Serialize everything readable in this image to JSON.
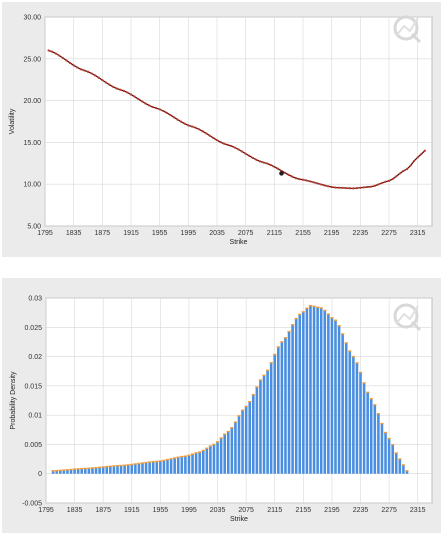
{
  "colors": {
    "panel_bg": "#ebebeb",
    "plot_bg": "#ffffff",
    "grid": "#d8d8d8",
    "line_dark": "#5a0f0f",
    "line_dots": "#c0392b",
    "highlight_point": "#222222",
    "bar_fill": "#4a8ee0",
    "bar_outline": "#f0a040"
  },
  "chart_data": [
    {
      "type": "line",
      "title": "",
      "xlabel": "Strike",
      "ylabel": "Volatility",
      "xlim": [
        1795,
        2335
      ],
      "ylim": [
        5,
        30
      ],
      "x_ticks": [
        "1795",
        "1835",
        "1875",
        "1915",
        "1955",
        "1995",
        "2035",
        "2075",
        "2115",
        "2155",
        "2195",
        "2235",
        "2275",
        "2315"
      ],
      "y_ticks": [
        "5.00",
        "10.00",
        "15.00",
        "20.00",
        "25.00",
        "30.00"
      ],
      "x_start": 1800,
      "x_end": 2325,
      "x_step": 5,
      "series": [
        {
          "points": [
            {
              "x": 1800,
              "y": 26.0
            },
            {
              "x": 1850,
              "y": 23.6
            },
            {
              "x": 1900,
              "y": 21.3
            },
            {
              "x": 1950,
              "y": 19.1
            },
            {
              "x": 2000,
              "y": 16.9
            },
            {
              "x": 2050,
              "y": 14.7
            },
            {
              "x": 2100,
              "y": 12.6
            },
            {
              "x": 2150,
              "y": 10.6
            },
            {
              "x": 2200,
              "y": 9.6
            },
            {
              "x": 2225,
              "y": 9.5
            },
            {
              "x": 2250,
              "y": 9.7
            },
            {
              "x": 2275,
              "y": 10.4
            },
            {
              "x": 2300,
              "y": 11.8
            },
            {
              "x": 2315,
              "y": 13.2
            },
            {
              "x": 2325,
              "y": 14.0
            }
          ]
        }
      ],
      "highlight": {
        "x": 2125,
        "y": 11.3
      },
      "grid": true
    },
    {
      "type": "bar",
      "title": "",
      "xlabel": "Strike",
      "ylabel": "Probability Density",
      "xlim": [
        1795,
        2335
      ],
      "ylim": [
        -0.005,
        0.03
      ],
      "x_ticks": [
        "1795",
        "1835",
        "1875",
        "1915",
        "1955",
        "1995",
        "2035",
        "2075",
        "2115",
        "2155",
        "2195",
        "2235",
        "2275",
        "2315"
      ],
      "y_ticks": [
        "-0.005",
        "0",
        "0.005",
        "0.01",
        "0.015",
        "0.02",
        "0.025",
        "0.03"
      ],
      "x_start": 1805,
      "x_end": 2300,
      "x_step": 5,
      "series": [
        {
          "points": [
            {
              "x": 1805,
              "y": 0.0005
            },
            {
              "x": 1850,
              "y": 0.0009
            },
            {
              "x": 1900,
              "y": 0.0014
            },
            {
              "x": 1950,
              "y": 0.0021
            },
            {
              "x": 1990,
              "y": 0.003
            },
            {
              "x": 2010,
              "y": 0.0037
            },
            {
              "x": 2030,
              "y": 0.005
            },
            {
              "x": 2050,
              "y": 0.0072
            },
            {
              "x": 2075,
              "y": 0.0115
            },
            {
              "x": 2100,
              "y": 0.0168
            },
            {
              "x": 2125,
              "y": 0.0225
            },
            {
              "x": 2150,
              "y": 0.0272
            },
            {
              "x": 2165,
              "y": 0.0287
            },
            {
              "x": 2180,
              "y": 0.0283
            },
            {
              "x": 2200,
              "y": 0.0262
            },
            {
              "x": 2225,
              "y": 0.02
            },
            {
              "x": 2250,
              "y": 0.0128
            },
            {
              "x": 2275,
              "y": 0.006
            },
            {
              "x": 2290,
              "y": 0.0025
            },
            {
              "x": 2300,
              "y": 0.0005
            }
          ]
        }
      ],
      "grid": true
    }
  ]
}
